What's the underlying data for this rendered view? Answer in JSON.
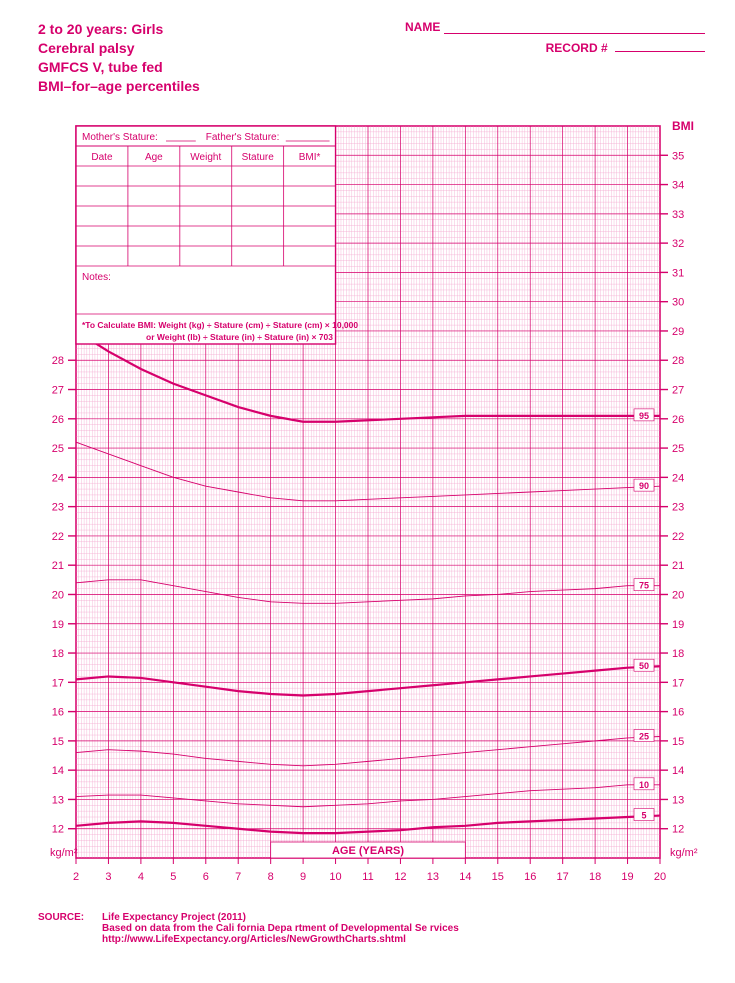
{
  "header": {
    "title_lines": [
      "2 to 20 years: Girls",
      "Cerebral palsy",
      "GMFCS V, tube fed",
      "BMI–for–age percentiles"
    ],
    "name_label": "NAME",
    "record_label": "RECORD #"
  },
  "info_table": {
    "mother_label": "Mother's Stature:",
    "father_label": "Father's Stature:",
    "columns": [
      "Date",
      "Age",
      "Weight",
      "Stature",
      "BMI*"
    ],
    "notes_label": "Notes:",
    "calc_line1": "*To Calculate BMI: Weight (kg) ÷ Stature (cm)  ÷ Stature (cm)  × 10,000",
    "calc_line2": "or Weight (lb) ÷ Stature (in)  ÷ Stature (in)  × 703"
  },
  "chart": {
    "primary_color": "#d6006c",
    "grid_minor_color": "#f4a8cf",
    "grid_major_color": "#d6006c",
    "background_color": "#ffffff",
    "x_label": "AGE (YEARS)",
    "y_label_left": "BMI",
    "y_label_right": "BMI",
    "unit_label": "kg/m²",
    "x_min": 2,
    "x_max": 20,
    "x_step": 1,
    "y_min": 11,
    "y_max": 36,
    "y_step": 1,
    "y_left_ticks_start": 12,
    "y_left_ticks_end": 28,
    "y_right_ticks_start": 12,
    "y_right_ticks_end": 35,
    "percentile_curves": [
      {
        "label": "95",
        "width": 2.2,
        "points": [
          [
            2,
            29.0
          ],
          [
            3,
            28.3
          ],
          [
            4,
            27.7
          ],
          [
            5,
            27.2
          ],
          [
            6,
            26.8
          ],
          [
            7,
            26.4
          ],
          [
            8,
            26.1
          ],
          [
            9,
            25.9
          ],
          [
            10,
            25.9
          ],
          [
            11,
            25.95
          ],
          [
            12,
            26.0
          ],
          [
            13,
            26.05
          ],
          [
            14,
            26.1
          ],
          [
            15,
            26.1
          ],
          [
            16,
            26.1
          ],
          [
            17,
            26.1
          ],
          [
            18,
            26.1
          ],
          [
            19,
            26.1
          ],
          [
            20,
            26.1
          ]
        ]
      },
      {
        "label": "90",
        "width": 0.9,
        "points": [
          [
            2,
            25.2
          ],
          [
            3,
            24.8
          ],
          [
            4,
            24.4
          ],
          [
            5,
            24.0
          ],
          [
            6,
            23.7
          ],
          [
            7,
            23.5
          ],
          [
            8,
            23.3
          ],
          [
            9,
            23.2
          ],
          [
            10,
            23.2
          ],
          [
            11,
            23.25
          ],
          [
            12,
            23.3
          ],
          [
            13,
            23.35
          ],
          [
            14,
            23.4
          ],
          [
            15,
            23.45
          ],
          [
            16,
            23.5
          ],
          [
            17,
            23.55
          ],
          [
            18,
            23.6
          ],
          [
            19,
            23.65
          ],
          [
            20,
            23.7
          ]
        ]
      },
      {
        "label": "75",
        "width": 0.9,
        "points": [
          [
            2,
            20.4
          ],
          [
            3,
            20.5
          ],
          [
            4,
            20.5
          ],
          [
            5,
            20.3
          ],
          [
            6,
            20.1
          ],
          [
            7,
            19.9
          ],
          [
            8,
            19.75
          ],
          [
            9,
            19.7
          ],
          [
            10,
            19.7
          ],
          [
            11,
            19.75
          ],
          [
            12,
            19.8
          ],
          [
            13,
            19.85
          ],
          [
            14,
            19.95
          ],
          [
            15,
            20.0
          ],
          [
            16,
            20.1
          ],
          [
            17,
            20.15
          ],
          [
            18,
            20.2
          ],
          [
            19,
            20.3
          ],
          [
            20,
            20.3
          ]
        ]
      },
      {
        "label": "50",
        "width": 2.2,
        "points": [
          [
            2,
            17.1
          ],
          [
            3,
            17.2
          ],
          [
            4,
            17.15
          ],
          [
            5,
            17.0
          ],
          [
            6,
            16.85
          ],
          [
            7,
            16.7
          ],
          [
            8,
            16.6
          ],
          [
            9,
            16.55
          ],
          [
            10,
            16.6
          ],
          [
            11,
            16.7
          ],
          [
            12,
            16.8
          ],
          [
            13,
            16.9
          ],
          [
            14,
            17.0
          ],
          [
            15,
            17.1
          ],
          [
            16,
            17.2
          ],
          [
            17,
            17.3
          ],
          [
            18,
            17.4
          ],
          [
            19,
            17.5
          ],
          [
            20,
            17.55
          ]
        ]
      },
      {
        "label": "25",
        "width": 0.9,
        "points": [
          [
            2,
            14.6
          ],
          [
            3,
            14.7
          ],
          [
            4,
            14.65
          ],
          [
            5,
            14.55
          ],
          [
            6,
            14.4
          ],
          [
            7,
            14.3
          ],
          [
            8,
            14.2
          ],
          [
            9,
            14.15
          ],
          [
            10,
            14.2
          ],
          [
            11,
            14.3
          ],
          [
            12,
            14.4
          ],
          [
            13,
            14.5
          ],
          [
            14,
            14.6
          ],
          [
            15,
            14.7
          ],
          [
            16,
            14.8
          ],
          [
            17,
            14.9
          ],
          [
            18,
            15.0
          ],
          [
            19,
            15.1
          ],
          [
            20,
            15.15
          ]
        ]
      },
      {
        "label": "10",
        "width": 0.9,
        "points": [
          [
            2,
            13.1
          ],
          [
            3,
            13.15
          ],
          [
            4,
            13.15
          ],
          [
            5,
            13.05
          ],
          [
            6,
            12.95
          ],
          [
            7,
            12.85
          ],
          [
            8,
            12.8
          ],
          [
            9,
            12.75
          ],
          [
            10,
            12.8
          ],
          [
            11,
            12.85
          ],
          [
            12,
            12.95
          ],
          [
            13,
            13.0
          ],
          [
            14,
            13.1
          ],
          [
            15,
            13.2
          ],
          [
            16,
            13.3
          ],
          [
            17,
            13.35
          ],
          [
            18,
            13.4
          ],
          [
            19,
            13.5
          ],
          [
            20,
            13.5
          ]
        ]
      },
      {
        "label": "5",
        "width": 2.2,
        "points": [
          [
            2,
            12.1
          ],
          [
            3,
            12.2
          ],
          [
            4,
            12.25
          ],
          [
            5,
            12.2
          ],
          [
            6,
            12.1
          ],
          [
            7,
            12.0
          ],
          [
            8,
            11.9
          ],
          [
            9,
            11.85
          ],
          [
            10,
            11.85
          ],
          [
            11,
            11.9
          ],
          [
            12,
            11.95
          ],
          [
            13,
            12.05
          ],
          [
            14,
            12.1
          ],
          [
            15,
            12.2
          ],
          [
            16,
            12.25
          ],
          [
            17,
            12.3
          ],
          [
            18,
            12.35
          ],
          [
            19,
            12.4
          ],
          [
            20,
            12.45
          ]
        ]
      }
    ]
  },
  "source": {
    "label": "SOURCE:",
    "line1": "Life Expectancy Project (2011)",
    "line2": "Based on data from the Cali    fornia Depa  rtment of Developmental Se  rvices",
    "line3": "http://www.LifeExpectancy.org/Articles/NewGrowthCharts.shtml"
  }
}
